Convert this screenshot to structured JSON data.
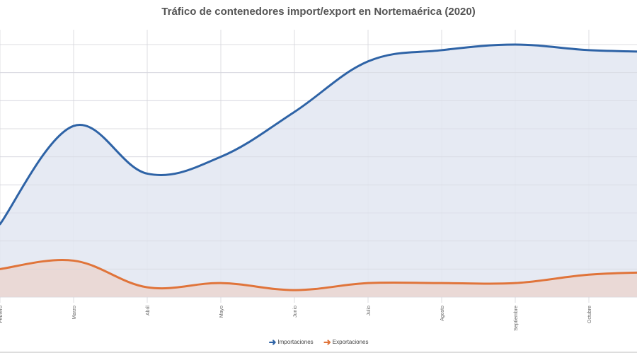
{
  "chart_data": {
    "type": "area",
    "title": "Tráfico de contenedores import/export en Nortemaérica (2020)",
    "categories": [
      "Febrero",
      "Marzo",
      "Abril",
      "Mayo",
      "Junio",
      "Julio",
      "Agosto",
      "Septiembre",
      "Octubre"
    ],
    "series": [
      {
        "name": "Importaciones",
        "color": "#2E63A6",
        "fill": "#E2E6F1",
        "values": [
          2.6,
          6.1,
          4.4,
          5.0,
          6.6,
          8.4,
          8.8,
          9.0,
          8.8
        ]
      },
      {
        "name": "Exportaciones",
        "color": "#E0743A",
        "fill": "#EAD7D3",
        "values": [
          1.0,
          1.3,
          0.35,
          0.5,
          0.25,
          0.5,
          0.5,
          0.5,
          0.8
        ]
      }
    ],
    "ylim": [
      0,
      9
    ],
    "y_tick_labels_visible": false,
    "grid": true,
    "smooth": true,
    "legend": "bottom-center"
  }
}
